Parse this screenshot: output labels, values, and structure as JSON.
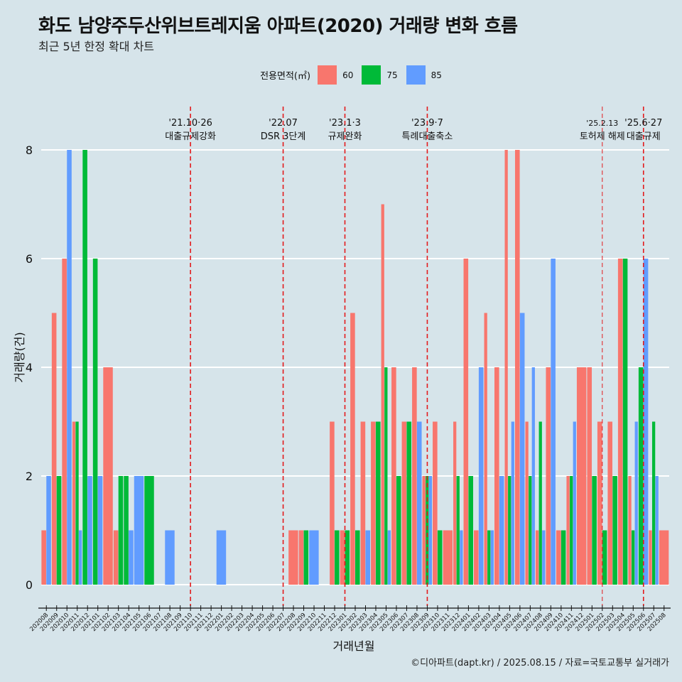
{
  "title": "화도 남양주두산위브트레지움 아파트(2020) 거래량 변화 흐름",
  "subtitle": "최근 5년 한정 확대 차트",
  "caption": "©디아파트(dapt.kr) / 2025.08.15 / 자료=국토교통부 실거래가",
  "colors": {
    "60": "#f8766d",
    "75": "#00ba38",
    "85": "#619cff",
    "vline": "#e31a1c",
    "grid": "#ffffff"
  },
  "chart_data": {
    "type": "bar",
    "title": "화도 남양주두산위브트레지움 아파트(2020) 거래량 변화 흐름",
    "subtitle": "최근 5년 한정 확대 차트",
    "xlabel": "거래년월",
    "ylabel": "거래량(건)",
    "ylim": [
      0,
      8
    ],
    "yticks": [
      0,
      2,
      4,
      6,
      8
    ],
    "grid": true,
    "legend": {
      "title": "전용면적(㎡)",
      "position": "top",
      "entries": [
        "60",
        "75",
        "85"
      ]
    },
    "categories": [
      "202008",
      "202009",
      "202010",
      "202011",
      "202012",
      "202101",
      "202102",
      "202103",
      "202104",
      "202105",
      "202106",
      "202107",
      "202108",
      "202109",
      "202110",
      "202111",
      "202112",
      "202201",
      "202202",
      "202203",
      "202204",
      "202205",
      "202206",
      "202207",
      "202208",
      "202209",
      "202210",
      "202211",
      "202212",
      "202301",
      "202302",
      "202303",
      "202304",
      "202305",
      "202306",
      "202307",
      "202308",
      "202309",
      "202310",
      "202311",
      "202312",
      "202401",
      "202402",
      "202403",
      "202404",
      "202405",
      "202406",
      "202407",
      "202408",
      "202409",
      "202410",
      "202411",
      "202412",
      "202501",
      "202502",
      "202503",
      "202504",
      "202505",
      "202506",
      "202507",
      "202508"
    ],
    "series": [
      {
        "name": "60",
        "values": [
          1,
          5,
          6,
          3,
          0,
          0,
          4,
          1,
          0,
          0,
          0,
          0,
          0,
          0,
          0,
          0,
          0,
          0,
          0,
          0,
          0,
          0,
          0,
          0,
          1,
          1,
          0,
          0,
          3,
          1,
          5,
          3,
          3,
          7,
          4,
          3,
          4,
          2,
          3,
          1,
          3,
          6,
          1,
          5,
          4,
          8,
          8,
          3,
          1,
          4,
          1,
          2,
          4,
          4,
          3,
          3,
          6,
          2,
          0,
          1,
          1
        ]
      },
      {
        "name": "75",
        "values": [
          0,
          2,
          0,
          3,
          8,
          6,
          0,
          2,
          2,
          0,
          2,
          0,
          0,
          0,
          0,
          0,
          0,
          0,
          0,
          0,
          0,
          0,
          0,
          0,
          0,
          1,
          0,
          0,
          1,
          1,
          1,
          0,
          3,
          4,
          2,
          3,
          0,
          2,
          1,
          0,
          2,
          2,
          0,
          1,
          0,
          2,
          0,
          2,
          3,
          0,
          1,
          2,
          0,
          2,
          1,
          2,
          6,
          1,
          4,
          3,
          0
        ]
      },
      {
        "name": "85",
        "values": [
          2,
          0,
          8,
          1,
          2,
          2,
          0,
          0,
          1,
          2,
          0,
          0,
          1,
          0,
          0,
          0,
          0,
          1,
          0,
          0,
          0,
          0,
          0,
          0,
          0,
          0,
          1,
          0,
          0,
          0,
          0,
          1,
          0,
          1,
          0,
          0,
          3,
          2,
          0,
          0,
          1,
          0,
          4,
          1,
          2,
          3,
          5,
          4,
          1,
          6,
          0,
          3,
          0,
          0,
          0,
          0,
          0,
          3,
          6,
          2,
          0
        ]
      }
    ],
    "annotations": [
      {
        "date": "'21.10·26",
        "label": "대출규제강화",
        "category": "202110"
      },
      {
        "date": "'22.07",
        "label": "DSR 3단계",
        "category": "202207"
      },
      {
        "date": "'23.1·3",
        "label": "규제완화",
        "category": "202301"
      },
      {
        "date": "'23.9·7",
        "label": "특례대출축소",
        "category": "202309"
      },
      {
        "date": "'25.2.13",
        "label": "토허제 해제",
        "category": "202502"
      },
      {
        "date": "'25.6·27",
        "label": "대출규제",
        "category": "202506"
      }
    ]
  }
}
